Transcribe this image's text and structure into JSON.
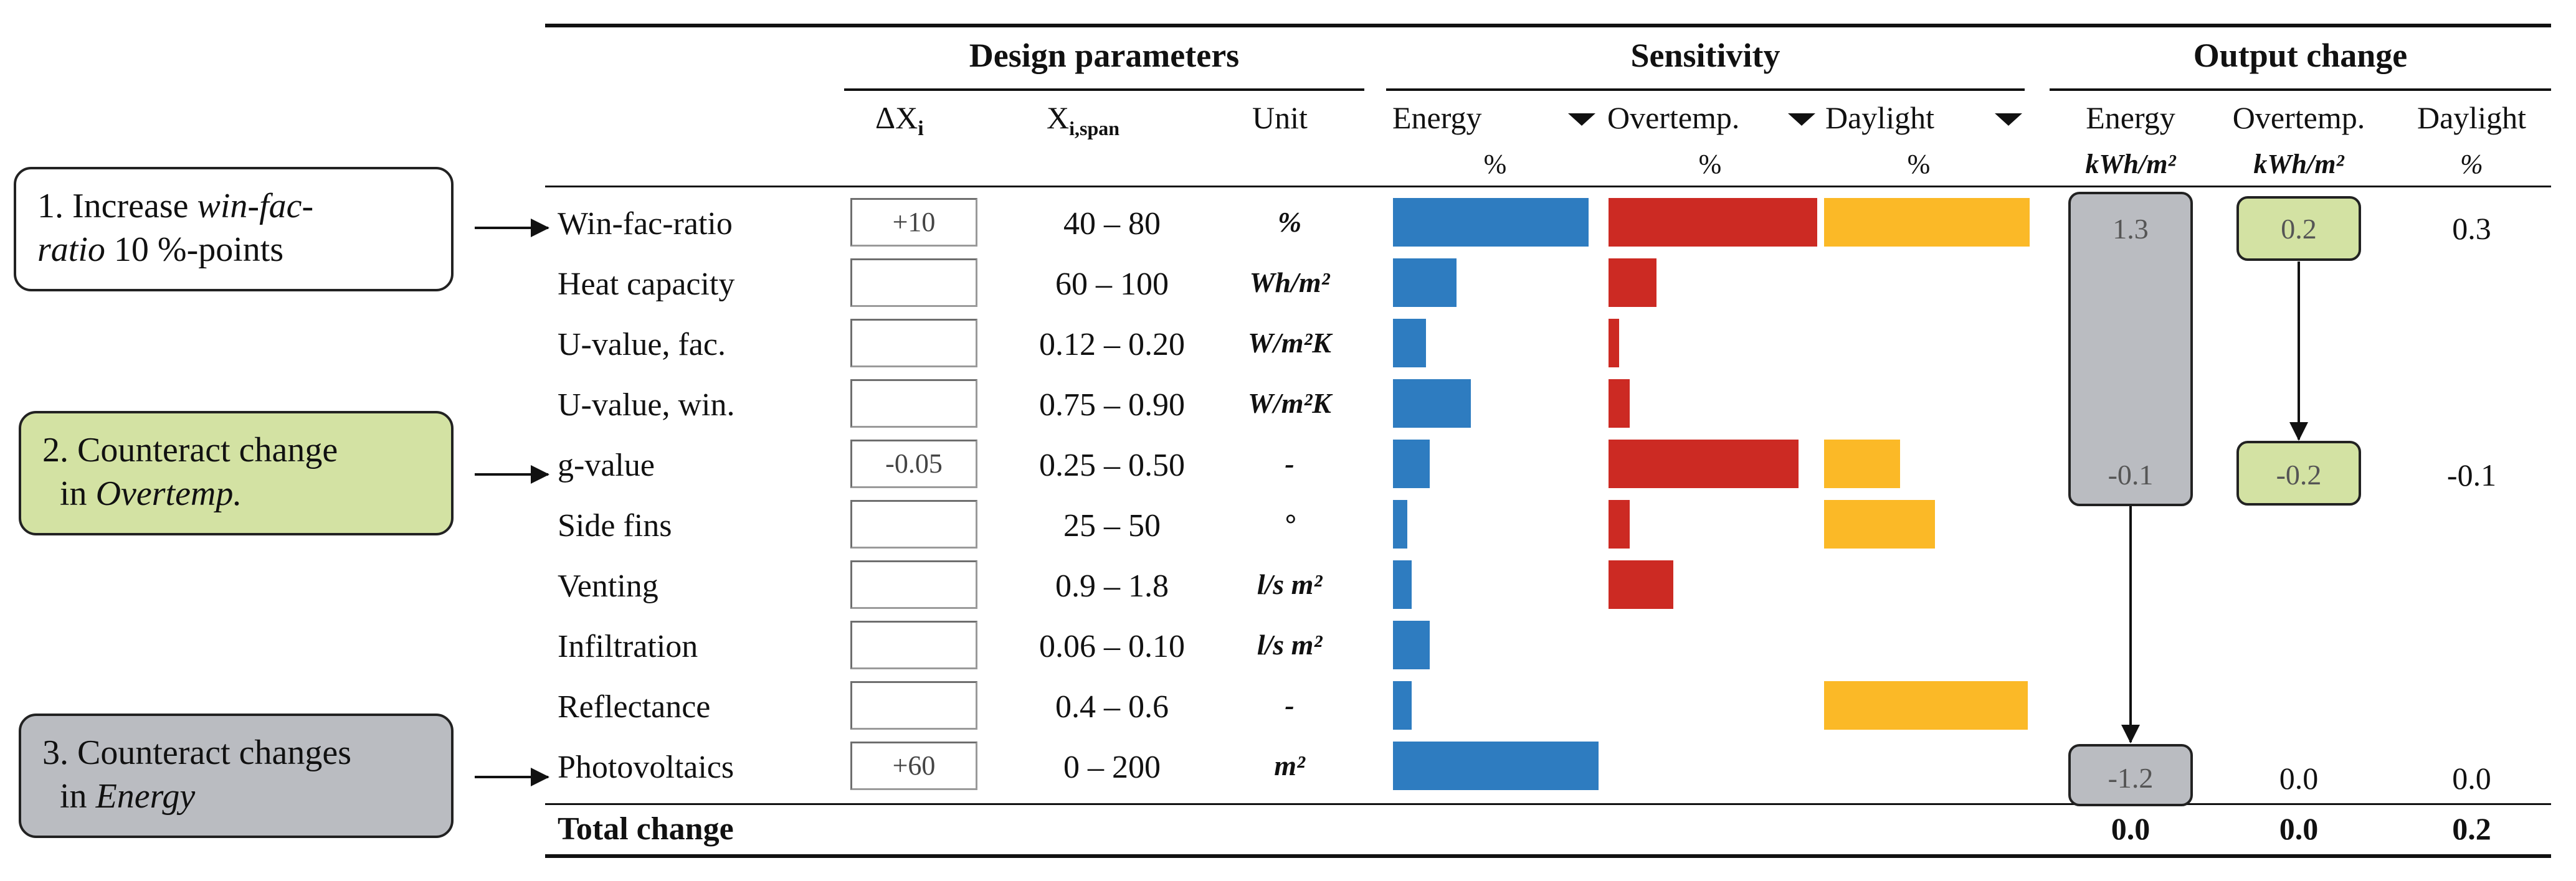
{
  "colors": {
    "energy": "#2e7cc0",
    "overtemp": "#cc2a23",
    "daylight": "#fbb927",
    "annotation_green": "#d3e2a3",
    "annotation_gray": "#babcc1"
  },
  "header": {
    "groups": {
      "design": "Design parameters",
      "sensitivity": "Sensitivity",
      "output": "Output change"
    },
    "columns": {
      "delta": "ΔX",
      "delta_sub": "i",
      "span": "X",
      "span_sub": "i,span",
      "unit": "Unit",
      "sens_energy": "Energy",
      "sens_overtemp": "Overtemp.",
      "sens_daylight": "Daylight",
      "out_energy": "Energy",
      "out_overtemp": "Overtemp.",
      "out_daylight": "Daylight"
    },
    "units": {
      "sens_energy": "%",
      "sens_overtemp": "%",
      "sens_daylight": "%",
      "out_energy": "kWh/m²",
      "out_overtemp": "kWh/m²",
      "out_daylight": "%"
    }
  },
  "annotations": {
    "a1": {
      "prefix": "1. Increase ",
      "em1": "win-fac-",
      "em2": "ratio",
      "suffix": " 10 %-points"
    },
    "a2": {
      "line1": "2. Counteract change",
      "line2_prefix": "in ",
      "line2_em": "Overtemp."
    },
    "a3": {
      "line1": "3. Counteract changes",
      "line2_prefix": "in ",
      "line2_em": "Energy"
    }
  },
  "rows": [
    {
      "name": "Win-fac-ratio",
      "delta": "+10",
      "span": "40 – 80",
      "unit": "%",
      "sens": {
        "energy": 0.95,
        "overtemp": 1.0,
        "daylight": 1.0
      }
    },
    {
      "name": "Heat capacity",
      "delta": "",
      "span": "60 – 100",
      "unit": "Wh/m²",
      "sens": {
        "energy": 0.31,
        "overtemp": 0.23,
        "daylight": 0
      }
    },
    {
      "name": "U-value, fac.",
      "delta": "",
      "span": "0.12 – 0.20",
      "unit": "W/m²K",
      "sens": {
        "energy": 0.16,
        "overtemp": 0.05,
        "daylight": 0
      }
    },
    {
      "name": "U-value, win.",
      "delta": "",
      "span": "0.75 – 0.90",
      "unit": "W/m²K",
      "sens": {
        "energy": 0.38,
        "overtemp": 0.1,
        "daylight": 0
      }
    },
    {
      "name": "g-value",
      "delta": "-0.05",
      "span": "0.25 – 0.50",
      "unit": "-",
      "sens": {
        "energy": 0.18,
        "overtemp": 0.91,
        "daylight": 0.37
      }
    },
    {
      "name": "Side fins",
      "delta": "",
      "span": "25 – 50",
      "unit": "°",
      "sens": {
        "energy": 0.07,
        "overtemp": 0.1,
        "daylight": 0.54
      }
    },
    {
      "name": "Venting",
      "delta": "",
      "span": "0.9 – 1.8",
      "unit": "l/s m²",
      "sens": {
        "energy": 0.09,
        "overtemp": 0.31,
        "daylight": 0
      }
    },
    {
      "name": "Infiltration",
      "delta": "",
      "span": "0.06 – 0.10",
      "unit": "l/s m²",
      "sens": {
        "energy": 0.18,
        "overtemp": 0,
        "daylight": 0
      }
    },
    {
      "name": "Reflectance",
      "delta": "",
      "span": "0.4 – 0.6",
      "unit": "-",
      "sens": {
        "energy": 0.09,
        "overtemp": 0,
        "daylight": 0.99
      }
    },
    {
      "name": "Photovoltaics",
      "delta": "+60",
      "span": "0 – 200",
      "unit": "m²",
      "sens": {
        "energy": 1.0,
        "overtemp": 0,
        "daylight": 0
      }
    }
  ],
  "outputs": {
    "row1": {
      "energy": "1.3",
      "overtemp": "0.2",
      "daylight": "0.3"
    },
    "row5": {
      "energy": "-0.1",
      "overtemp": "-0.2",
      "daylight": "-0.1"
    },
    "row10": {
      "energy": "-1.2",
      "overtemp": "0.0",
      "daylight": "0.0"
    }
  },
  "total": {
    "label": "Total change",
    "energy": "0.0",
    "overtemp": "0.0",
    "daylight": "0.2"
  }
}
